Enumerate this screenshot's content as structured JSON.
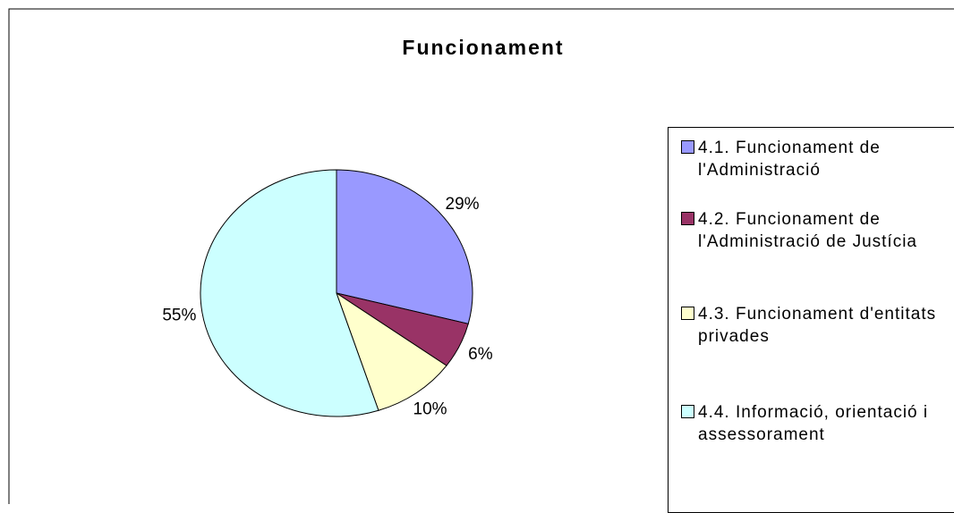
{
  "chart_data": {
    "type": "pie",
    "title": "Funcionament",
    "categories": [
      "4.1. Funcionament de l'Administració",
      "4.2. Funcionament de l'Administració de Justícia",
      "4.3. Funcionament d'entitats privades",
      "4.4. Informació, orientació i assessorament"
    ],
    "values": [
      29,
      6,
      10,
      55
    ],
    "value_labels": [
      "29%",
      "6%",
      "10%",
      "55%"
    ],
    "colors": [
      "#9999ff",
      "#993366",
      "#ffffcc",
      "#ccffff"
    ],
    "legend": "right"
  }
}
